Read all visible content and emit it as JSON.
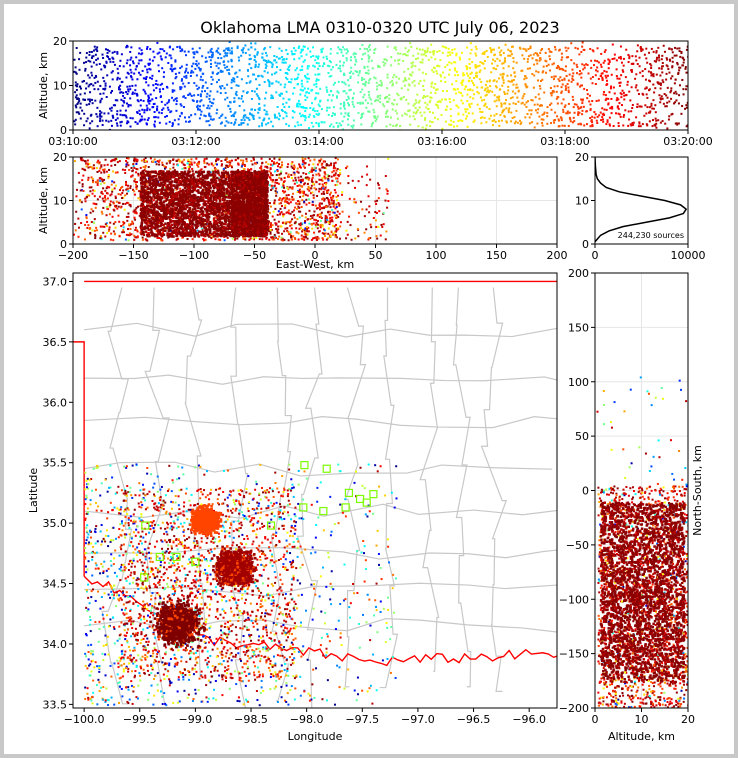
{
  "title": "Oklahoma LMA 0310-0320 UTC July 06, 2023",
  "colors": {
    "state_border": "#ff0000",
    "county_lines": "#c8c8c8",
    "square_marker": "#7cfc00",
    "grid": "#e6e6e6"
  },
  "chart_data": [
    {
      "type": "scatter",
      "panel": "altitude-time",
      "ylabel": "Altitude, km",
      "ylim": [
        0,
        20
      ],
      "yticks": [
        "0",
        "10",
        "20"
      ],
      "xlim": [
        "03:10:00",
        "03:20:00"
      ],
      "xticks": [
        "03:10:00",
        "03:12:00",
        "03:14:00",
        "03:16:00",
        "03:18:00",
        "03:20:00"
      ],
      "colormap": "jet, colored by time",
      "dense_band_km": [
        1,
        19
      ]
    },
    {
      "type": "scatter",
      "panel": "east-west-altitude",
      "xlabel": "East-West, km",
      "ylabel": "Altitude, km",
      "xlim": [
        -200,
        200
      ],
      "ylim": [
        0,
        20
      ],
      "xticks": [
        "−200",
        "−150",
        "−100",
        "−50",
        "0",
        "50",
        "100",
        "150",
        "200"
      ],
      "yticks": [
        "0",
        "10",
        "20"
      ],
      "clusters": [
        {
          "x_range": [
            -145,
            -70
          ],
          "alt_range": [
            2,
            17
          ],
          "density": "high"
        },
        {
          "x_range": [
            -70,
            -40
          ],
          "alt_range": [
            2,
            17
          ],
          "density": "high"
        }
      ]
    },
    {
      "type": "line",
      "panel": "altitude-histogram",
      "xlim": [
        0,
        10000
      ],
      "ylim": [
        0,
        20
      ],
      "xticks": [
        "0",
        "10000"
      ],
      "yticks": [
        "0",
        "10",
        "20"
      ],
      "annotation": "244,230 sources",
      "x": [
        0,
        200,
        600,
        1500,
        3000,
        5500,
        8000,
        9500,
        9800,
        9200,
        7500,
        5000,
        2600,
        1200,
        600,
        250,
        120,
        40,
        0
      ],
      "y": [
        0.5,
        1,
        2,
        3,
        4,
        5,
        6,
        7,
        8,
        9,
        10,
        11,
        12,
        13,
        14,
        15,
        16,
        18,
        20
      ]
    },
    {
      "type": "scatter",
      "panel": "plan-view",
      "xlabel": "Longitude",
      "ylabel": "Latitude",
      "xlim": [
        -100.1,
        -95.75
      ],
      "ylim": [
        33.47,
        37.07
      ],
      "xticks": [
        "−100.0",
        "−99.5",
        "−99.0",
        "−98.5",
        "−98.0",
        "−97.5",
        "−97.0",
        "−96.5",
        "−96.0"
      ],
      "yticks": [
        "33.5",
        "34.0",
        "34.5",
        "35.0",
        "35.5",
        "36.0",
        "36.5",
        "37.0"
      ],
      "station_squares": [
        [
          -98.02,
          35.48
        ],
        [
          -97.82,
          35.45
        ],
        [
          -97.62,
          35.25
        ],
        [
          -97.52,
          35.2
        ],
        [
          -97.46,
          35.17
        ],
        [
          -97.4,
          35.24
        ],
        [
          -97.65,
          35.13
        ],
        [
          -97.85,
          35.1
        ],
        [
          -98.03,
          35.13
        ],
        [
          -98.32,
          34.98
        ],
        [
          -99.45,
          34.98
        ],
        [
          -99.32,
          34.72
        ],
        [
          -99.17,
          34.72
        ],
        [
          -99.0,
          34.68
        ],
        [
          -99.46,
          34.55
        ]
      ],
      "clusters": [
        {
          "lon": -99.16,
          "lat": 34.18,
          "spread": 0.16,
          "color": "#7f0000"
        },
        {
          "lon": -98.66,
          "lat": 34.64,
          "spread": 0.14,
          "color": "#a00000"
        },
        {
          "lon": -98.92,
          "lat": 35.03,
          "spread": 0.1,
          "color": "#ff4500"
        }
      ]
    },
    {
      "type": "scatter",
      "panel": "altitude-north-south",
      "xlabel": "Altitude, km",
      "ylabel": "North-South, km",
      "xlim": [
        0,
        20
      ],
      "ylim": [
        -200,
        200
      ],
      "xticks": [
        "0",
        "10",
        "20"
      ],
      "yticks": [
        "−200",
        "−150",
        "−100",
        "−50",
        "0",
        "50",
        "100",
        "150",
        "200"
      ],
      "clusters": [
        {
          "alt_range": [
            1,
            19
          ],
          "ns_range": [
            -175,
            -10
          ],
          "density": "high"
        }
      ]
    }
  ]
}
